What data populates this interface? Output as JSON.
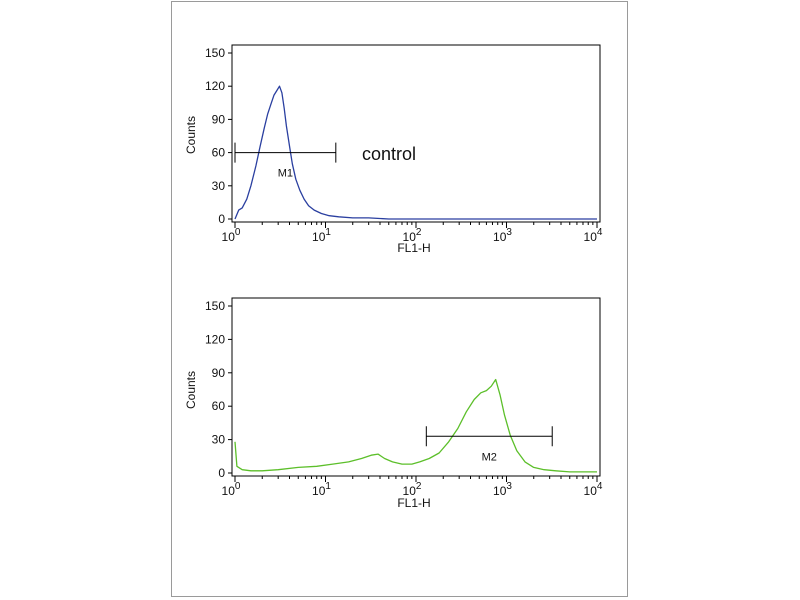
{
  "chart_data": [
    {
      "type": "area",
      "title": "",
      "xlabel": "FL1-H",
      "ylabel": "Counts",
      "x_scale": "log",
      "xlim": [
        1,
        10000
      ],
      "ylim": [
        0,
        150
      ],
      "x_ticks": [
        "10^0",
        "10^1",
        "10^2",
        "10^3",
        "10^4"
      ],
      "y_ticks": [
        0,
        30,
        60,
        90,
        120,
        150
      ],
      "grid": false,
      "series": [
        {
          "color": "#2a3fa0",
          "x": [
            1,
            1.1,
            1.2,
            1.35,
            1.5,
            1.7,
            1.9,
            2.1,
            2.3,
            2.5,
            2.7,
            2.9,
            3.1,
            3.3,
            3.5,
            3.7,
            4.0,
            4.3,
            4.7,
            5.2,
            5.8,
            6.5,
            7.5,
            9,
            11,
            14,
            20,
            30,
            50,
            100,
            300,
            1000,
            3000,
            10000
          ],
          "values": [
            0,
            8,
            10,
            18,
            30,
            48,
            66,
            82,
            95,
            104,
            112,
            116,
            120,
            114,
            100,
            84,
            66,
            50,
            36,
            26,
            18,
            12,
            8,
            5,
            3,
            2,
            1,
            1,
            0,
            0,
            0,
            0,
            0,
            0
          ]
        }
      ],
      "gates": [
        {
          "label": "M1",
          "x_start": 1,
          "x_end": 13,
          "y": 60
        }
      ],
      "annotations": [
        "control"
      ]
    },
    {
      "type": "area",
      "title": "",
      "xlabel": "FL1-H",
      "ylabel": "Counts",
      "x_scale": "log",
      "xlim": [
        1,
        10000
      ],
      "ylim": [
        0,
        150
      ],
      "x_ticks": [
        "10^0",
        "10^1",
        "10^2",
        "10^3",
        "10^4"
      ],
      "y_ticks": [
        0,
        30,
        60,
        90,
        120,
        150
      ],
      "grid": false,
      "series": [
        {
          "color": "#5cbf2a",
          "x": [
            1,
            1.05,
            1.2,
            1.5,
            2,
            3,
            5,
            8,
            12,
            18,
            25,
            32,
            38,
            45,
            55,
            70,
            90,
            110,
            140,
            180,
            230,
            290,
            360,
            440,
            520,
            600,
            680,
            760,
            850,
            950,
            1100,
            1300,
            1600,
            2000,
            2600,
            3500,
            5000,
            7000,
            10000
          ],
          "values": [
            28,
            6,
            3,
            2,
            2,
            3,
            5,
            6,
            8,
            10,
            13,
            16,
            17,
            13,
            10,
            8,
            8,
            10,
            13,
            18,
            28,
            40,
            55,
            66,
            72,
            74,
            78,
            84,
            70,
            52,
            34,
            20,
            10,
            5,
            3,
            2,
            1,
            1,
            1
          ]
        }
      ],
      "gates": [
        {
          "label": "M2",
          "x_start": 130,
          "x_end": 3200,
          "y": 33
        }
      ],
      "annotations": []
    }
  ]
}
